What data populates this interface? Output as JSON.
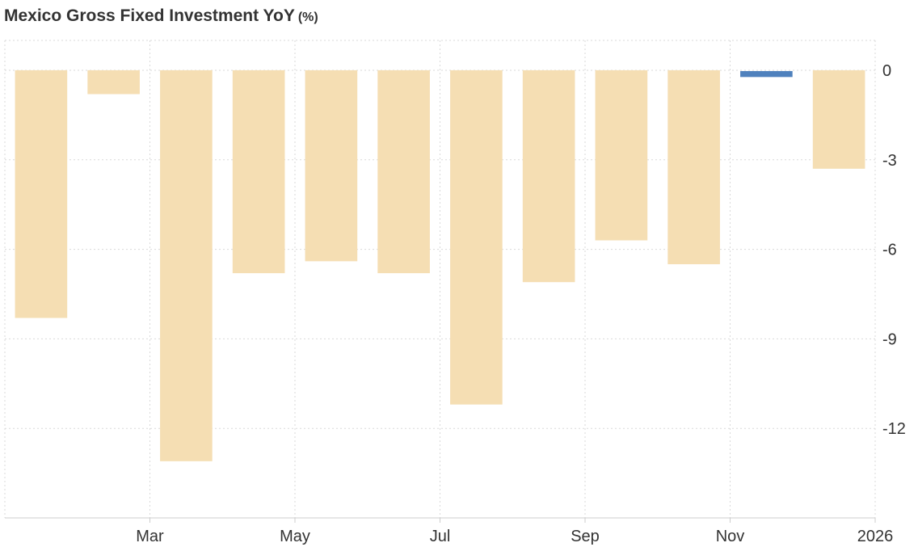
{
  "chart_data": {
    "type": "bar",
    "title": "Mexico Gross Fixed Investment YoY",
    "unit": "(%)",
    "categories": [
      "2025-01",
      "2025-02",
      "2025-03",
      "2025-04",
      "2025-05",
      "2025-06",
      "2025-07",
      "2025-08",
      "2025-09",
      "2025-10",
      "2025-11",
      "2025-12"
    ],
    "x_tick_labels": [
      "Mar",
      "May",
      "Jul",
      "Sep",
      "Nov",
      "2026"
    ],
    "x_tick_dates": [
      "2025-03-01",
      "2025-05-01",
      "2025-07-01",
      "2025-09-01",
      "2025-11-01",
      "2026-01-01"
    ],
    "series": [
      {
        "values": [
          -8.3,
          -0.8,
          -13.1,
          -6.8,
          -6.4,
          -6.8,
          -11.2,
          -7.1,
          -5.7,
          -6.5,
          -0.2,
          -3.3
        ],
        "colors": [
          "#f5deb3",
          "#f5deb3",
          "#f5deb3",
          "#f5deb3",
          "#f5deb3",
          "#f5deb3",
          "#f5deb3",
          "#f5deb3",
          "#f5deb3",
          "#f5deb3",
          "#4f81bd",
          "#f5deb3"
        ]
      }
    ],
    "y_ticks": [
      0,
      -3,
      -6,
      -9,
      -12
    ],
    "ylim": [
      -15,
      1
    ],
    "y_axis_side": "right",
    "grid": true,
    "legend": "none",
    "colors": {
      "bar": "#f5deb3",
      "highlight": "#4f81bd",
      "grid": "#d9d9d9",
      "axis": "#cccccc",
      "text": "#333333"
    }
  }
}
